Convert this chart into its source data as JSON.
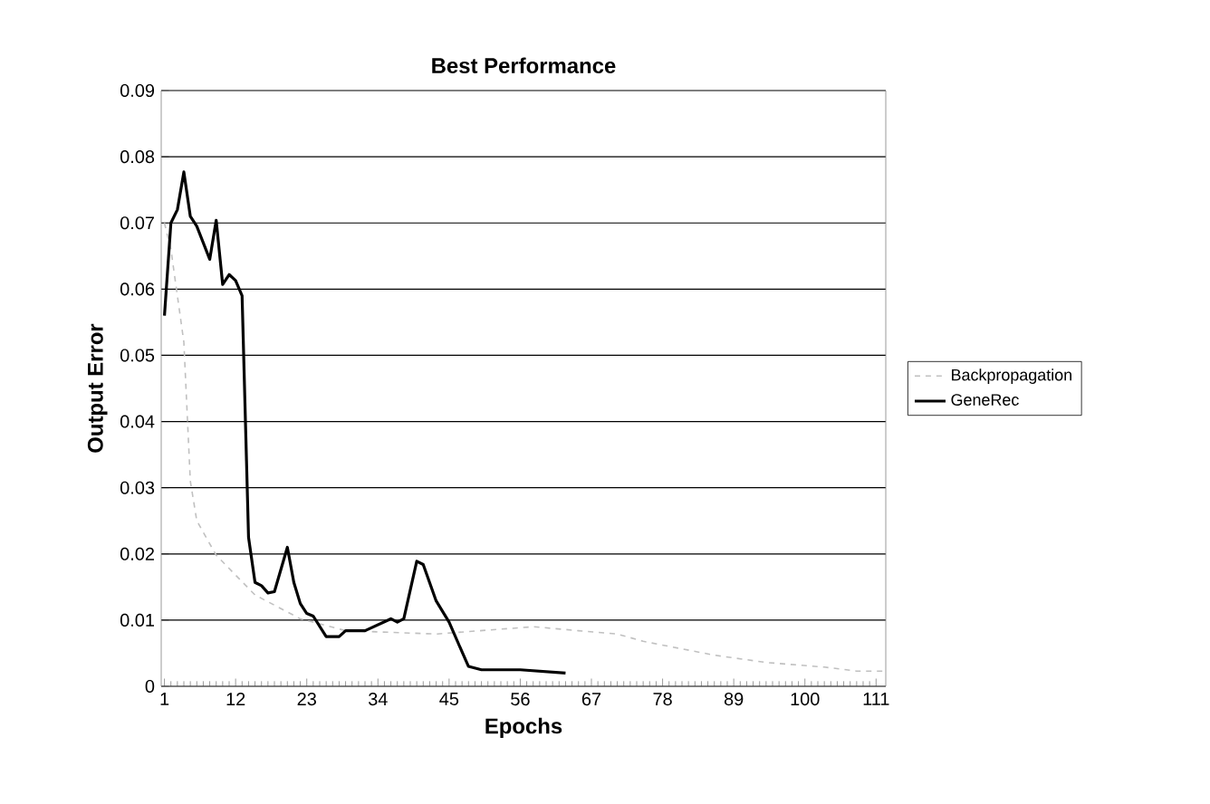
{
  "chart_data": {
    "type": "line",
    "title": "Best Performance",
    "xlabel": "Epochs",
    "ylabel": "Output Error",
    "xlim": [
      0.5,
      112.5
    ],
    "xticks": [
      1,
      12,
      23,
      34,
      45,
      56,
      67,
      78,
      89,
      100,
      111
    ],
    "ylim": [
      0,
      0.09
    ],
    "yticks": [
      0,
      0.01,
      0.02,
      0.03,
      0.04,
      0.05,
      0.06,
      0.07,
      0.08,
      0.09
    ],
    "grid": "y",
    "legend": "right",
    "marker": "none",
    "series": [
      {
        "name": "Backpropagation",
        "color": "#c0c0c0",
        "line_style": "dashed",
        "x": [
          1,
          2,
          4,
          5,
          6,
          9,
          15,
          22,
          29,
          43,
          58,
          65,
          71,
          75,
          86,
          94,
          103,
          108,
          112
        ],
        "values": [
          0.07,
          0.066,
          0.052,
          0.031,
          0.025,
          0.0198,
          0.0138,
          0.0102,
          0.0084,
          0.0079,
          0.009,
          0.0084,
          0.0079,
          0.0068,
          0.0047,
          0.0036,
          0.0029,
          0.0023,
          0.0023
        ]
      },
      {
        "name": "GeneRec",
        "color": "#000000",
        "line_style": "solid",
        "x": [
          1,
          2,
          3,
          4,
          5,
          6,
          8,
          9,
          10,
          11,
          12,
          13,
          14,
          15,
          16,
          17,
          18,
          20,
          21,
          22,
          23,
          24,
          26,
          28,
          29,
          32,
          34,
          36,
          37,
          38,
          40,
          41,
          43,
          45,
          47,
          48,
          50,
          56,
          63
        ],
        "values": [
          0.056,
          0.07,
          0.072,
          0.0777,
          0.071,
          0.0695,
          0.0645,
          0.0704,
          0.0607,
          0.0622,
          0.0613,
          0.059,
          0.0225,
          0.0157,
          0.0152,
          0.0141,
          0.0143,
          0.021,
          0.0157,
          0.0125,
          0.011,
          0.0106,
          0.0075,
          0.0075,
          0.0084,
          0.0084,
          0.0093,
          0.0102,
          0.0097,
          0.0102,
          0.0189,
          0.0184,
          0.0129,
          0.0097,
          0.0052,
          0.003,
          0.0025,
          0.0025,
          0.002
        ]
      }
    ]
  }
}
